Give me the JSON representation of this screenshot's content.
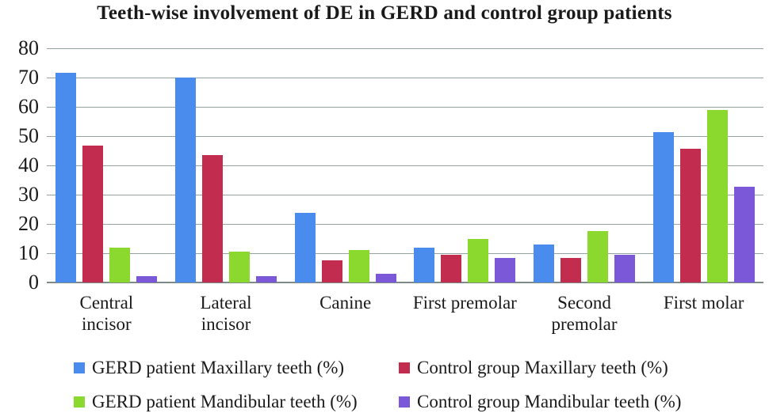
{
  "chart_data": {
    "type": "bar",
    "title": "Teeth-wise involvement of DE in GERD and control group patients",
    "xlabel": "",
    "ylabel": "",
    "ylim": [
      0,
      80
    ],
    "yticks": [
      0,
      10,
      20,
      30,
      40,
      50,
      60,
      70,
      80
    ],
    "grid": true,
    "legend_position": "bottom",
    "legend_columns": 2,
    "categories": [
      "Central\nincisor",
      "Lateral\nincisor",
      "Canine",
      "First premolar",
      "Second\npremolar",
      "First molar"
    ],
    "series": [
      {
        "name": "GERD patient Maxillary teeth (%)",
        "color": "#4a8cee",
        "values": [
          71.7,
          70.0,
          23.9,
          12.0,
          13.1,
          51.3
        ]
      },
      {
        "name": "Control group Maxillary teeth (%)",
        "color": "#c22c4e",
        "values": [
          46.7,
          43.5,
          7.5,
          9.5,
          8.3,
          45.8
        ]
      },
      {
        "name": "GERD patient Mandibular teeth (%)",
        "color": "#8bd92e",
        "values": [
          12.0,
          10.6,
          11.1,
          14.8,
          17.6,
          59.0
        ]
      },
      {
        "name": "Control group Mandibular teeth (%)",
        "color": "#7a58d8",
        "values": [
          2.2,
          2.2,
          3.0,
          8.3,
          9.5,
          32.8
        ]
      }
    ]
  },
  "style_colors": {
    "gridline": "#95a2a2",
    "axis_line": "#7e8a8a",
    "text": "#1a1a1a",
    "background": "#ffffff"
  }
}
